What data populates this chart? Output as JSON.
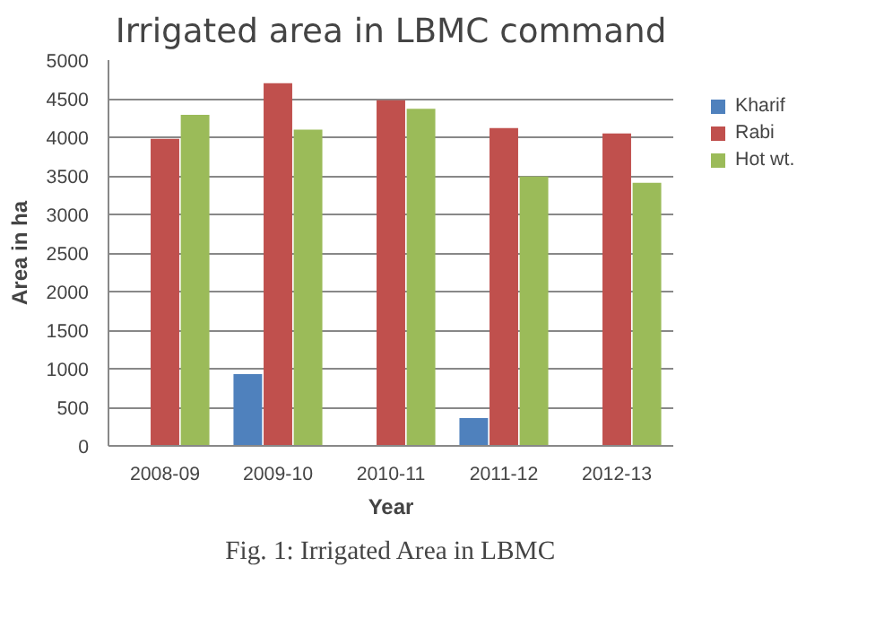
{
  "chart_data": {
    "type": "bar",
    "title": "Irrigated area in LBMC command",
    "xlabel": "Year",
    "ylabel": "Area in ha",
    "categories": [
      "2008-09",
      "2009-10",
      "2010-11",
      "2011-12",
      "2012-13"
    ],
    "series": [
      {
        "name": "Kharif",
        "color": "#4f81bd",
        "values": [
          0,
          930,
          0,
          360,
          0
        ]
      },
      {
        "name": "Rabi",
        "color": "#c0504d",
        "values": [
          3980,
          4700,
          4480,
          4120,
          4050
        ]
      },
      {
        "name": "Hot wt.",
        "color": "#9bbb59",
        "values": [
          4290,
          4100,
          4370,
          3490,
          3410
        ]
      }
    ],
    "ylim": [
      0,
      5000
    ],
    "yticks": [
      0,
      500,
      1000,
      1500,
      2000,
      2500,
      3000,
      3500,
      4000,
      4500,
      5000
    ],
    "grid": "y",
    "legend": "right",
    "annotations": [
      "Fig. 1: Irrigated Area in LBMC"
    ]
  }
}
